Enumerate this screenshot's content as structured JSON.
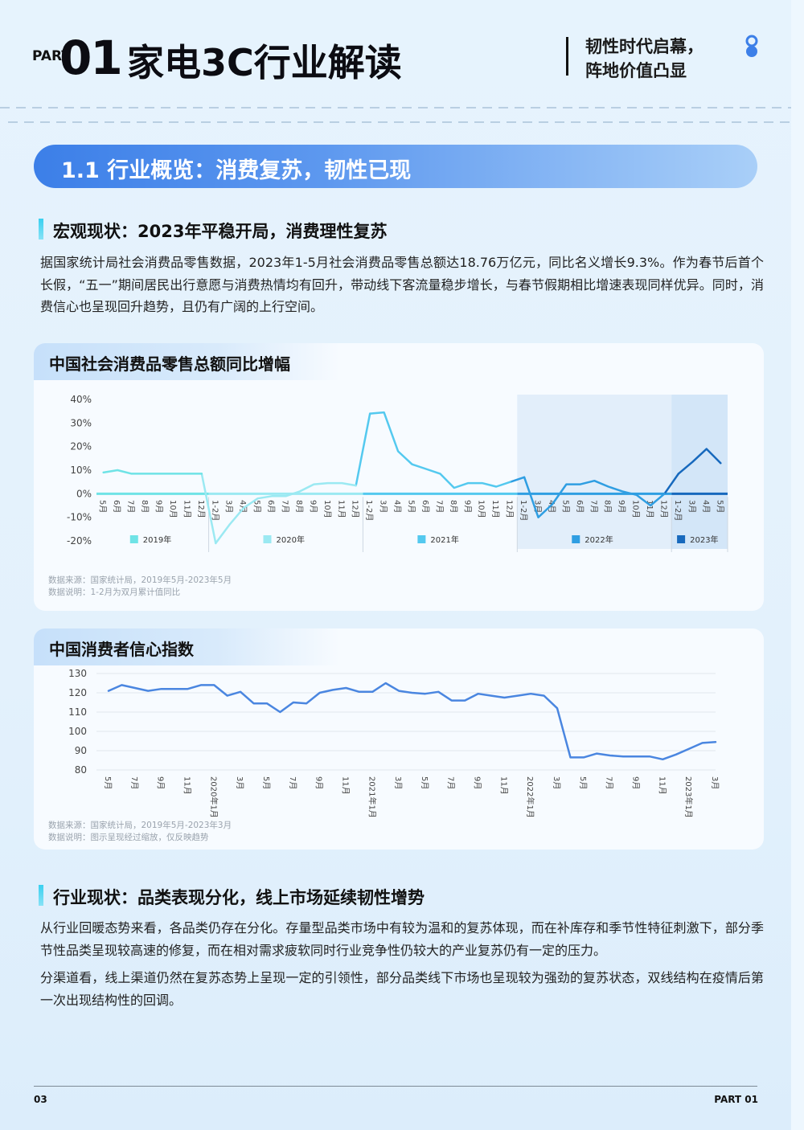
{
  "header": {
    "part": "PART",
    "number": "01",
    "title": "家电3C行业解读",
    "tagline": [
      "韧性时代启幕，",
      "阵地价值凸显"
    ]
  },
  "section": {
    "title": "1.1 行业概览：消费复苏，韧性已现"
  },
  "macro": {
    "heading": "宏观现状：2023年平稳开局，消费理性复苏",
    "paragraph": "据国家统计局社会消费品零售数据，2023年1-5月社会消费品零售总额达18.76万亿元，同比名义增长9.3%。作为春节后首个长假，“五一”期间居民出行意愿与消费热情均有回升，带动线下客流量稳步增长，与春节假期相比增速表现同样优异。同时，消费信心也呈现回升趋势，且仍有广阔的上行空间。"
  },
  "chart_data": [
    {
      "type": "line",
      "title": "中国社会消费品零售总额同比增幅",
      "categories": [
        "5月",
        "6月",
        "7月",
        "8月",
        "9月",
        "10月",
        "11月",
        "12月",
        "1-2月",
        "3月",
        "4月",
        "5月",
        "6月",
        "7月",
        "8月",
        "9月",
        "10月",
        "11月",
        "12月",
        "1-2月",
        "3月",
        "4月",
        "5月",
        "6月",
        "7月",
        "8月",
        "9月",
        "10月",
        "11月",
        "12月",
        "1-2月",
        "3月",
        "4月",
        "5月",
        "6月",
        "7月",
        "8月",
        "9月",
        "10月",
        "11月",
        "12月",
        "1-2月",
        "3月",
        "4月",
        "5月"
      ],
      "series": [
        {
          "name": "2019年",
          "color": "#6fe3e6",
          "values": [
            9,
            10,
            8.5,
            8.5,
            8.5,
            8.5,
            8.5,
            8.5,
            null,
            null,
            null,
            null,
            null,
            null,
            null,
            null,
            null,
            null,
            null,
            null,
            null,
            null,
            null,
            null,
            null,
            null,
            null,
            null,
            null,
            null,
            null,
            null,
            null,
            null,
            null,
            null,
            null,
            null,
            null,
            null,
            null,
            null,
            null,
            null,
            null
          ]
        },
        {
          "name": "2020年",
          "color": "#9be9f2",
          "values": [
            null,
            null,
            null,
            null,
            null,
            null,
            null,
            null,
            -21,
            -13,
            -6,
            -2,
            -1,
            -1,
            1,
            4,
            4.5,
            4.5,
            3.5,
            null,
            null,
            null,
            null,
            null,
            null,
            null,
            null,
            null,
            null,
            null,
            null,
            null,
            null,
            null,
            null,
            null,
            null,
            null,
            null,
            null,
            null,
            null,
            null,
            null,
            null
          ]
        },
        {
          "name": "2021年",
          "color": "#54c9ef",
          "values": [
            null,
            null,
            null,
            null,
            null,
            null,
            null,
            null,
            null,
            null,
            null,
            null,
            null,
            null,
            null,
            null,
            null,
            null,
            null,
            34,
            34.5,
            18,
            12.5,
            10.5,
            8.5,
            2.5,
            4.5,
            4.5,
            3,
            5,
            null,
            null,
            null,
            null,
            null,
            null,
            null,
            null,
            null,
            null,
            null,
            null,
            null,
            null,
            null
          ]
        },
        {
          "name": "2022年",
          "color": "#2f9ee2",
          "values": [
            null,
            null,
            null,
            null,
            null,
            null,
            null,
            null,
            null,
            null,
            null,
            null,
            null,
            null,
            null,
            null,
            null,
            null,
            null,
            null,
            null,
            null,
            null,
            null,
            null,
            null,
            null,
            null,
            null,
            null,
            7,
            -10,
            -4.5,
            4,
            4,
            5.5,
            3,
            1,
            -0.5,
            -5,
            0,
            null,
            null,
            null,
            null
          ]
        },
        {
          "name": "2023年",
          "color": "#1769bd",
          "values": [
            null,
            null,
            null,
            null,
            null,
            null,
            null,
            null,
            null,
            null,
            null,
            null,
            null,
            null,
            null,
            null,
            null,
            null,
            null,
            null,
            null,
            null,
            null,
            null,
            null,
            null,
            null,
            null,
            null,
            null,
            null,
            null,
            null,
            null,
            null,
            null,
            null,
            null,
            null,
            null,
            null,
            8.5,
            13.5,
            19,
            13
          ]
        }
      ],
      "ylim": [
        -20,
        40
      ],
      "yticks": [
        {
          "value": 40,
          "label": "40%"
        },
        {
          "value": 30,
          "label": "30%"
        },
        {
          "value": 20,
          "label": "20%"
        },
        {
          "value": 10,
          "label": "10%"
        },
        {
          "value": 0,
          "label": "0%"
        },
        {
          "value": -10,
          "label": "-10%"
        },
        {
          "value": -20,
          "label": "-20%"
        }
      ],
      "grid": false,
      "notes": [
        "数据来源：国家统计局，2019年5月-2023年5月",
        "数据说明：1-2月为双月累计值同比"
      ]
    },
    {
      "type": "line",
      "title": "中国消费者信心指数",
      "categories": [
        "5月",
        null,
        "7月",
        null,
        "9月",
        null,
        "11月",
        null,
        "2020年1月",
        null,
        "3月",
        null,
        "5月",
        null,
        "7月",
        null,
        "9月",
        null,
        "11月",
        null,
        "2021年1月",
        null,
        "3月",
        null,
        "5月",
        null,
        "7月",
        null,
        "9月",
        null,
        "11月",
        null,
        "2022年1月",
        null,
        "3月",
        null,
        "5月",
        null,
        "7月",
        null,
        "9月",
        null,
        "11月",
        null,
        "2023年1月",
        null,
        "3月"
      ],
      "values": [
        121,
        124,
        122.5,
        121,
        122,
        122,
        122,
        124,
        124,
        118.5,
        120.5,
        114.5,
        114.5,
        110,
        115,
        114.5,
        120,
        121.5,
        122.5,
        120.5,
        120.5,
        125,
        121,
        120,
        119.5,
        120.5,
        116,
        116,
        119.5,
        118.5,
        117.5,
        118.5,
        119.5,
        118.5,
        112,
        86.5,
        86.5,
        88.5,
        87.5,
        87,
        87,
        87,
        85.5,
        88,
        91,
        94,
        94.5
      ],
      "color": "#4a86e0",
      "ylim": [
        80,
        130
      ],
      "yticks": [
        130,
        120,
        110,
        100,
        90,
        80
      ],
      "grid": true,
      "notes": [
        "数据来源：国家统计局，2019年5月-2023年3月",
        "数据说明：图示呈现经过缩放，仅反映趋势"
      ]
    }
  ],
  "industry": {
    "heading": "行业现状：品类表现分化，线上市场延续韧性增势",
    "paragraphs": [
      "从行业回暖态势来看，各品类仍存在分化。存量型品类市场中有较为温和的复苏体现，而在补库存和季节性特征刺激下，部分季节性品类呈现较高速的修复，而在相对需求疲软同时行业竞争性仍较大的产业复苏仍有一定的压力。",
      "分渠道看，线上渠道仍然在复苏态势上呈现一定的引领性，部分品类线下市场也呈现较为强劲的复苏状态，双线结构在疫情后第一次出现结构性的回调。"
    ]
  },
  "footer": {
    "page": "03",
    "part": "PART 01"
  }
}
